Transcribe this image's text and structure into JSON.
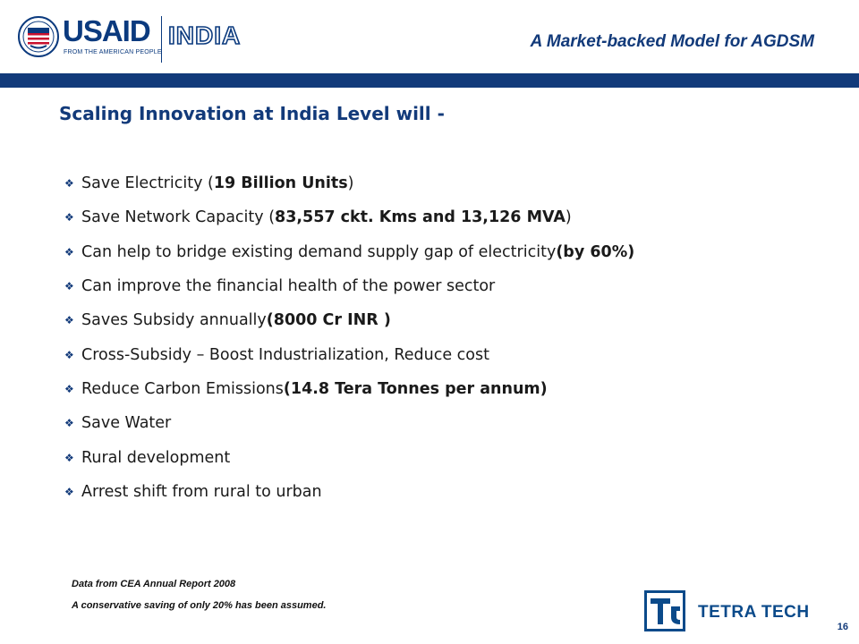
{
  "header": {
    "logo_usaid": "USAID",
    "logo_tagline": "FROM THE AMERICAN PEOPLE",
    "logo_country": "INDIA",
    "title": "A Market-backed Model for AGDSM",
    "bar_color": "#123a7a"
  },
  "slide": {
    "heading": "Scaling Innovation at India Level will -",
    "bullet_icon": "diamond-bullet-icon",
    "bullets": [
      {
        "pre": "Save Electricity (",
        "bold": "19 Billion Units",
        "post": ")"
      },
      {
        "pre": "Save Network Capacity (",
        "bold": "83,557 ckt. Kms and 13,126 MVA",
        "post": ")"
      },
      {
        "pre": "Can help to bridge existing demand supply gap of electricity ",
        "bold": "(by 60%)",
        "post": ""
      },
      {
        "pre": "Can improve the financial health of the power sector",
        "bold": "",
        "post": ""
      },
      {
        "pre": "Saves Subsidy annually ",
        "bold": "(8000 Cr INR )",
        "post": ""
      },
      {
        "pre": "Cross-Subsidy – Boost Industrialization, Reduce cost",
        "bold": "",
        "post": ""
      },
      {
        "pre": "Reduce Carbon Emissions ",
        "bold": "(14.8 Tera Tonnes per annum)",
        "post": ""
      },
      {
        "pre": "Save Water",
        "bold": "",
        "post": ""
      },
      {
        "pre": "Rural development",
        "bold": "",
        "post": ""
      },
      {
        "pre": "Arrest shift from rural to urban",
        "bold": "",
        "post": ""
      }
    ]
  },
  "footnotes": {
    "source": "Data from CEA Annual Report 2008",
    "assumption": "A conservative saving of only 20% has been assumed."
  },
  "footer": {
    "company": "TETRA TECH",
    "page_number": "16",
    "accent": "#0b4a8a"
  }
}
